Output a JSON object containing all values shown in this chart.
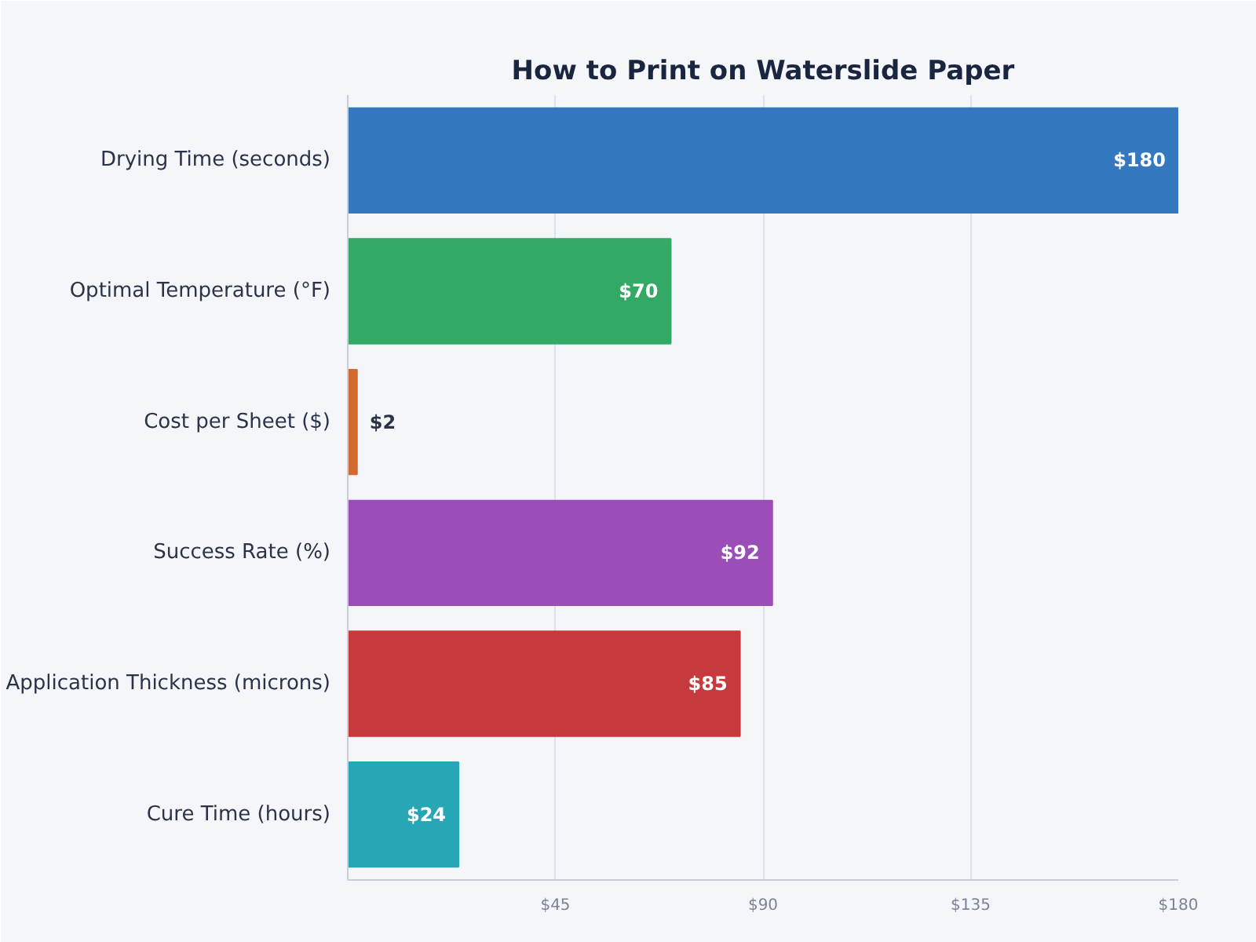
{
  "chart_data": {
    "type": "bar",
    "orientation": "horizontal",
    "title": "How to Print on Waterslide Paper",
    "categories": [
      "Drying Time (seconds)",
      "Optimal Temperature (°F)",
      "Cost per Sheet ($)",
      "Success Rate (%)",
      "Application Thickness (microns)",
      "Cure Time (hours)"
    ],
    "values": [
      180,
      70,
      2,
      92,
      85,
      24
    ],
    "colors": [
      "#3478c0",
      "#34a865",
      "#d2692e",
      "#9b4db8",
      "#c6393d",
      "#27a6b5"
    ],
    "value_labels": [
      "$180",
      "$70",
      "$2",
      "$92",
      "$85",
      "$24"
    ],
    "xlim": [
      0,
      180
    ],
    "xticks": [
      {
        "value": 45,
        "label": "$45"
      },
      {
        "value": 90,
        "label": "$90"
      },
      {
        "value": 135,
        "label": "$135"
      },
      {
        "value": 180,
        "label": "$180"
      }
    ],
    "grid": "x"
  }
}
